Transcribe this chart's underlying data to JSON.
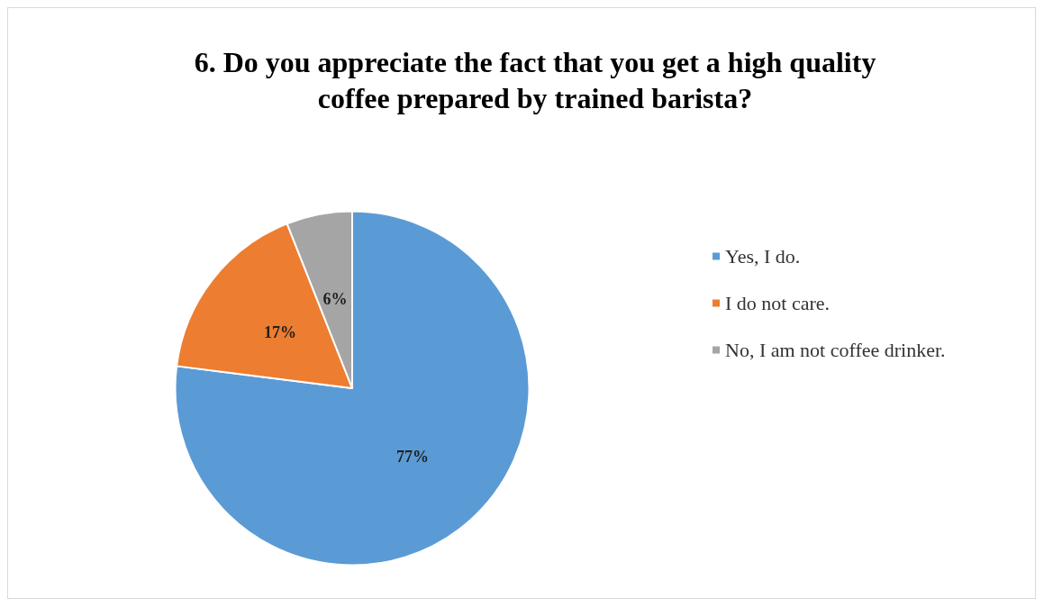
{
  "chart_data": {
    "type": "pie",
    "title": "6. Do you appreciate the fact that you get a high quality\ncoffee prepared by trained barista?",
    "categories": [
      "Yes, I do.",
      "I do not care.",
      "No, I am not coffee drinker."
    ],
    "values": [
      77,
      17,
      6
    ],
    "colors": [
      "#5b9bd5",
      "#ed7d31",
      "#a5a5a5"
    ],
    "value_labels": [
      "77%",
      "17%",
      "6%"
    ],
    "legend": "right"
  }
}
